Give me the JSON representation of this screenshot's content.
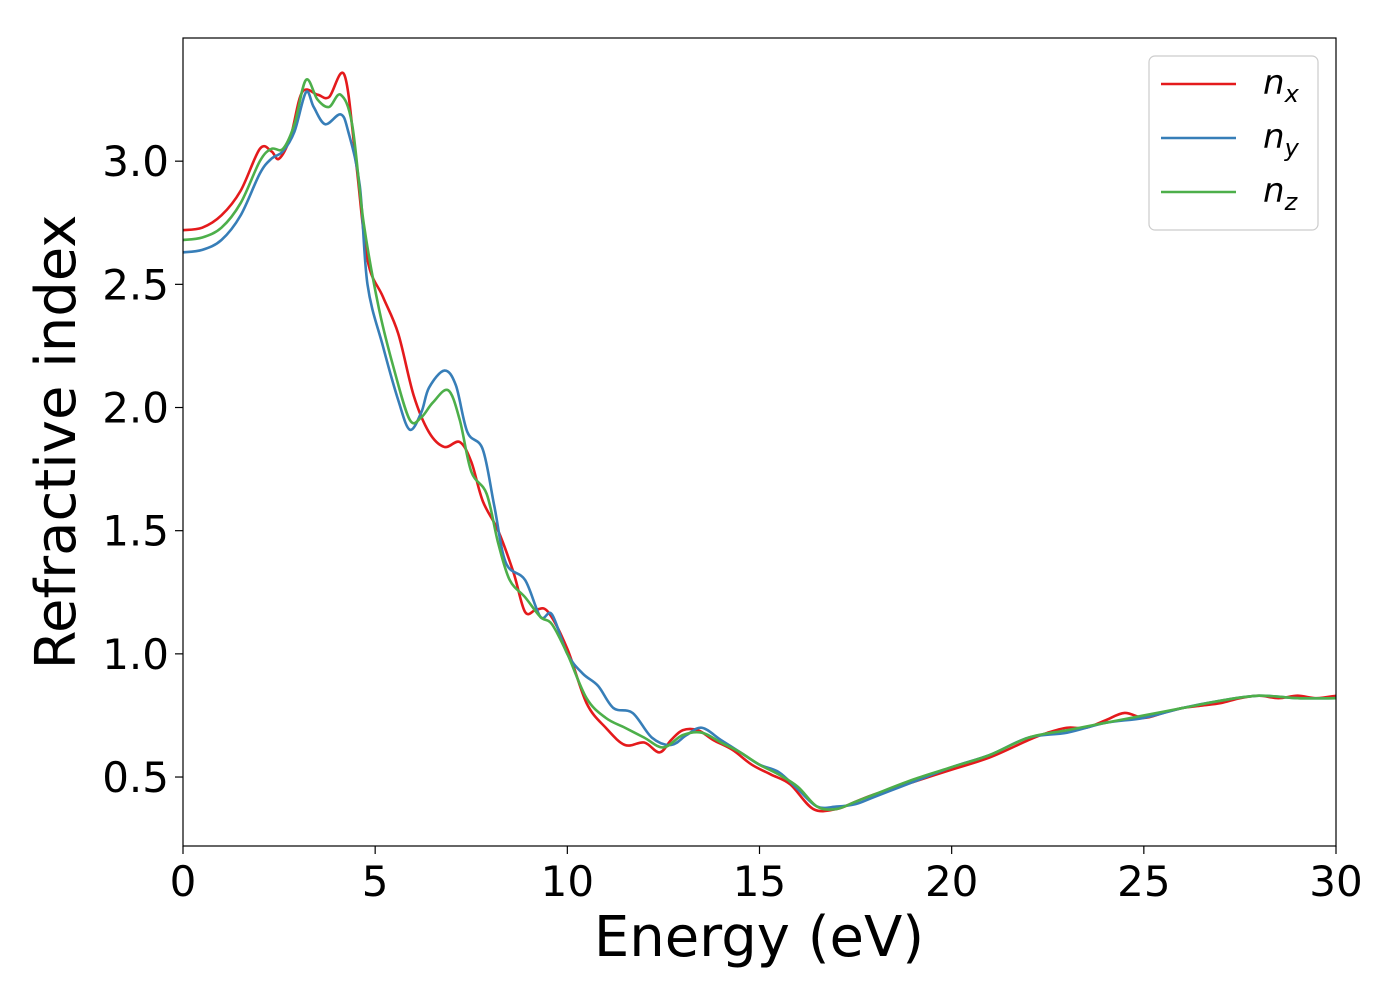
{
  "chart_data": {
    "type": "line",
    "title": "",
    "xlabel": "Energy (eV)",
    "ylabel": "Refractive index",
    "xlim": [
      0,
      30
    ],
    "ylim": [
      0.22,
      3.5
    ],
    "xticks": [
      0,
      5,
      10,
      15,
      20,
      25,
      30
    ],
    "xtick_labels": [
      "0",
      "5",
      "10",
      "15",
      "20",
      "25",
      "30"
    ],
    "yticks": [
      0.5,
      1.0,
      1.5,
      2.0,
      2.5,
      3.0
    ],
    "ytick_labels": [
      "0.5",
      "1.0",
      "1.5",
      "2.0",
      "2.5",
      "3.0"
    ],
    "grid": false,
    "legend_position": "top-right",
    "series": [
      {
        "name": "n_x",
        "legend_base": "n",
        "legend_sub": "x",
        "color": "#e41a1c",
        "points": [
          [
            0,
            2.72
          ],
          [
            0.5,
            2.73
          ],
          [
            1,
            2.78
          ],
          [
            1.5,
            2.88
          ],
          [
            2,
            3.05
          ],
          [
            2.3,
            3.04
          ],
          [
            2.5,
            3.01
          ],
          [
            2.8,
            3.1
          ],
          [
            3.1,
            3.28
          ],
          [
            3.5,
            3.27
          ],
          [
            3.8,
            3.26
          ],
          [
            4.2,
            3.35
          ],
          [
            4.5,
            3.0
          ],
          [
            4.8,
            2.6
          ],
          [
            5.2,
            2.45
          ],
          [
            5.6,
            2.3
          ],
          [
            6,
            2.05
          ],
          [
            6.4,
            1.9
          ],
          [
            6.8,
            1.84
          ],
          [
            7.2,
            1.86
          ],
          [
            7.5,
            1.78
          ],
          [
            7.8,
            1.62
          ],
          [
            8.2,
            1.5
          ],
          [
            8.6,
            1.33
          ],
          [
            8.9,
            1.17
          ],
          [
            9.2,
            1.18
          ],
          [
            9.5,
            1.17
          ],
          [
            10,
            1.02
          ],
          [
            10.5,
            0.8
          ],
          [
            11,
            0.7
          ],
          [
            11.5,
            0.63
          ],
          [
            12,
            0.64
          ],
          [
            12.4,
            0.6
          ],
          [
            12.7,
            0.65
          ],
          [
            13,
            0.69
          ],
          [
            13.4,
            0.69
          ],
          [
            13.8,
            0.65
          ],
          [
            14.3,
            0.61
          ],
          [
            14.8,
            0.55
          ],
          [
            15.3,
            0.51
          ],
          [
            15.8,
            0.47
          ],
          [
            16.4,
            0.37
          ],
          [
            17,
            0.37
          ],
          [
            17.5,
            0.4
          ],
          [
            18,
            0.43
          ],
          [
            19,
            0.48
          ],
          [
            20,
            0.53
          ],
          [
            21,
            0.58
          ],
          [
            22,
            0.65
          ],
          [
            22.5,
            0.68
          ],
          [
            23,
            0.7
          ],
          [
            23.5,
            0.7
          ],
          [
            24,
            0.73
          ],
          [
            24.5,
            0.76
          ],
          [
            25,
            0.74
          ],
          [
            25.5,
            0.76
          ],
          [
            26,
            0.78
          ],
          [
            26.5,
            0.79
          ],
          [
            27,
            0.8
          ],
          [
            27.5,
            0.82
          ],
          [
            28,
            0.83
          ],
          [
            28.5,
            0.82
          ],
          [
            29,
            0.83
          ],
          [
            29.5,
            0.82
          ],
          [
            30,
            0.83
          ]
        ]
      },
      {
        "name": "n_y",
        "legend_base": "n",
        "legend_sub": "y",
        "color": "#377eb8",
        "points": [
          [
            0,
            2.63
          ],
          [
            0.5,
            2.64
          ],
          [
            1,
            2.68
          ],
          [
            1.5,
            2.78
          ],
          [
            2,
            2.95
          ],
          [
            2.3,
            3.01
          ],
          [
            2.6,
            3.04
          ],
          [
            2.9,
            3.12
          ],
          [
            3.2,
            3.28
          ],
          [
            3.4,
            3.22
          ],
          [
            3.7,
            3.15
          ],
          [
            4.1,
            3.19
          ],
          [
            4.3,
            3.12
          ],
          [
            4.6,
            2.9
          ],
          [
            4.8,
            2.5
          ],
          [
            5.2,
            2.25
          ],
          [
            5.6,
            2.03
          ],
          [
            5.9,
            1.91
          ],
          [
            6.2,
            1.98
          ],
          [
            6.4,
            2.08
          ],
          [
            6.8,
            2.15
          ],
          [
            7.1,
            2.09
          ],
          [
            7.4,
            1.9
          ],
          [
            7.8,
            1.83
          ],
          [
            8.1,
            1.6
          ],
          [
            8.4,
            1.37
          ],
          [
            8.9,
            1.3
          ],
          [
            9.3,
            1.15
          ],
          [
            9.6,
            1.16
          ],
          [
            10,
            1.0
          ],
          [
            10.4,
            0.92
          ],
          [
            10.8,
            0.87
          ],
          [
            11.2,
            0.78
          ],
          [
            11.7,
            0.76
          ],
          [
            12.2,
            0.66
          ],
          [
            12.7,
            0.63
          ],
          [
            13.1,
            0.67
          ],
          [
            13.5,
            0.7
          ],
          [
            14,
            0.65
          ],
          [
            14.5,
            0.6
          ],
          [
            15,
            0.55
          ],
          [
            15.5,
            0.52
          ],
          [
            16,
            0.45
          ],
          [
            16.5,
            0.38
          ],
          [
            17,
            0.38
          ],
          [
            17.5,
            0.39
          ],
          [
            18,
            0.42
          ],
          [
            19,
            0.48
          ],
          [
            20,
            0.54
          ],
          [
            21,
            0.59
          ],
          [
            22,
            0.66
          ],
          [
            23,
            0.68
          ],
          [
            24,
            0.72
          ],
          [
            25,
            0.74
          ],
          [
            26,
            0.78
          ],
          [
            27,
            0.81
          ],
          [
            28,
            0.83
          ],
          [
            29,
            0.82
          ],
          [
            30,
            0.82
          ]
        ]
      },
      {
        "name": "n_z",
        "legend_base": "n",
        "legend_sub": "z",
        "color": "#4daf4a",
        "points": [
          [
            0,
            2.68
          ],
          [
            0.5,
            2.69
          ],
          [
            1,
            2.73
          ],
          [
            1.5,
            2.83
          ],
          [
            2,
            3.0
          ],
          [
            2.3,
            3.05
          ],
          [
            2.6,
            3.05
          ],
          [
            2.9,
            3.15
          ],
          [
            3.2,
            3.33
          ],
          [
            3.5,
            3.25
          ],
          [
            3.8,
            3.22
          ],
          [
            4.1,
            3.27
          ],
          [
            4.4,
            3.15
          ],
          [
            4.7,
            2.75
          ],
          [
            5.1,
            2.4
          ],
          [
            5.5,
            2.15
          ],
          [
            5.9,
            1.95
          ],
          [
            6.2,
            1.96
          ],
          [
            6.5,
            2.02
          ],
          [
            6.9,
            2.07
          ],
          [
            7.2,
            1.95
          ],
          [
            7.5,
            1.74
          ],
          [
            7.9,
            1.65
          ],
          [
            8.2,
            1.45
          ],
          [
            8.5,
            1.3
          ],
          [
            8.9,
            1.23
          ],
          [
            9.3,
            1.15
          ],
          [
            9.6,
            1.12
          ],
          [
            10,
            1.0
          ],
          [
            10.5,
            0.82
          ],
          [
            11,
            0.74
          ],
          [
            11.5,
            0.7
          ],
          [
            12,
            0.66
          ],
          [
            12.5,
            0.62
          ],
          [
            13,
            0.67
          ],
          [
            13.5,
            0.68
          ],
          [
            14,
            0.64
          ],
          [
            14.5,
            0.6
          ],
          [
            15,
            0.55
          ],
          [
            15.5,
            0.51
          ],
          [
            16,
            0.46
          ],
          [
            16.5,
            0.38
          ],
          [
            17,
            0.37
          ],
          [
            17.5,
            0.4
          ],
          [
            18,
            0.43
          ],
          [
            19,
            0.49
          ],
          [
            20,
            0.54
          ],
          [
            21,
            0.59
          ],
          [
            22,
            0.66
          ],
          [
            23,
            0.69
          ],
          [
            24,
            0.72
          ],
          [
            25,
            0.75
          ],
          [
            26,
            0.78
          ],
          [
            27,
            0.81
          ],
          [
            28,
            0.83
          ],
          [
            29,
            0.82
          ],
          [
            30,
            0.82
          ]
        ]
      }
    ]
  }
}
